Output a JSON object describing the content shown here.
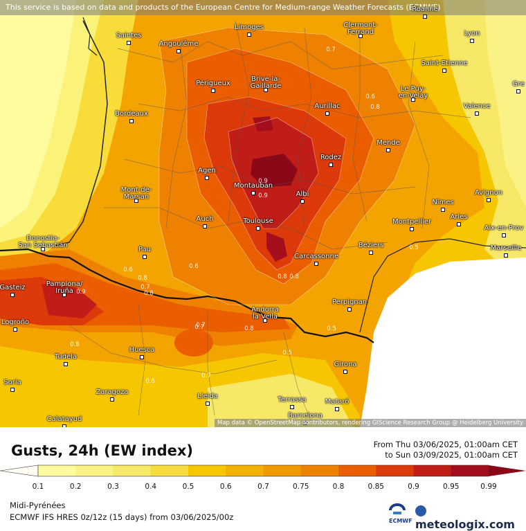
{
  "banner": "This service is based on data and products of the European Centre for Medium-range Weather Forecasts (ECMWF)",
  "attribution": "Map data © OpenStreetMap contributors, rendering GIScience Research Group @ Heidelberg University",
  "title": "Gusts, 24h (EW index)",
  "period_from": "From Thu 03/06/2025, 01:00am CET",
  "period_to": "to Sun 03/09/2025, 01:00am CET",
  "region": "Midi-Pyrénées",
  "model": "ECMWF IFS HRES 0z/12z (15 days) from 03/06/2025/00z",
  "brand": "meteologix.com",
  "ecmwf_logo": "ECMWF",
  "legend": {
    "ticks": [
      "0.1",
      "0.2",
      "0.3",
      "0.4",
      "0.5",
      "0.6",
      "0.7",
      "0.75",
      "0.8",
      "0.85",
      "0.9",
      "0.95",
      "0.99"
    ],
    "colors": [
      "#fffca0",
      "#fbf286",
      "#f8e867",
      "#f6dc3e",
      "#f6c600",
      "#f2b000",
      "#f09a00",
      "#ee8200",
      "#ea5e00",
      "#dc3a0a",
      "#c01c18",
      "#a40e1c",
      "#8a0818"
    ]
  },
  "cities": [
    {
      "name": "Roanne"
    },
    {
      "name": "Saintes"
    },
    {
      "name": "Limoges"
    },
    {
      "name": "Clermont-\nFerrand"
    },
    {
      "name": "Lyon"
    },
    {
      "name": "Angoulême"
    },
    {
      "name": "Saint-Etienne"
    },
    {
      "name": "Périgueux"
    },
    {
      "name": "Brive-la-\nGaillarde"
    },
    {
      "name": "Le Puy-\nen-Velay"
    },
    {
      "name": "Gre"
    },
    {
      "name": "Aurillac"
    },
    {
      "name": "Bordeaux"
    },
    {
      "name": "Valence"
    },
    {
      "name": "Mende"
    },
    {
      "name": "Agen"
    },
    {
      "name": "Rodez"
    },
    {
      "name": "Montauban"
    },
    {
      "name": "Avignon"
    },
    {
      "name": "Mont-de-\nMarsan"
    },
    {
      "name": "Albi"
    },
    {
      "name": "Nîmes"
    },
    {
      "name": "Arles"
    },
    {
      "name": "Auch"
    },
    {
      "name": "Toulouse"
    },
    {
      "name": "Montpellier"
    },
    {
      "name": "Aix-en-Prov"
    },
    {
      "name": "Donostia-\nSan Sebastián"
    },
    {
      "name": "Pau"
    },
    {
      "name": "Béziers"
    },
    {
      "name": "Marseille"
    },
    {
      "name": "Carcassonne"
    },
    {
      "name": "Gasteiz"
    },
    {
      "name": "Pamplona/\nIruña"
    },
    {
      "name": "Perpignan"
    },
    {
      "name": "Andorra\nla Vella"
    },
    {
      "name": "Logroño"
    },
    {
      "name": "Huesca"
    },
    {
      "name": "Tudela"
    },
    {
      "name": "Girona"
    },
    {
      "name": "Soria"
    },
    {
      "name": "Zaragoza"
    },
    {
      "name": "Lleida"
    },
    {
      "name": "Terrassa"
    },
    {
      "name": "Mataró"
    },
    {
      "name": "Barcelona"
    },
    {
      "name": "Calatayud"
    }
  ],
  "contour_labels": [
    "0.7",
    "0.6",
    "0.8",
    "0.9",
    "0.9",
    "0.8",
    "0.9",
    "0.8",
    "0.8",
    "0.7",
    "0.6",
    "0.8",
    "0.5",
    "0.7",
    "0.8",
    "0.7",
    "0.5",
    "0.5",
    "0.6",
    "0.7",
    "0.6",
    "0.8"
  ]
}
